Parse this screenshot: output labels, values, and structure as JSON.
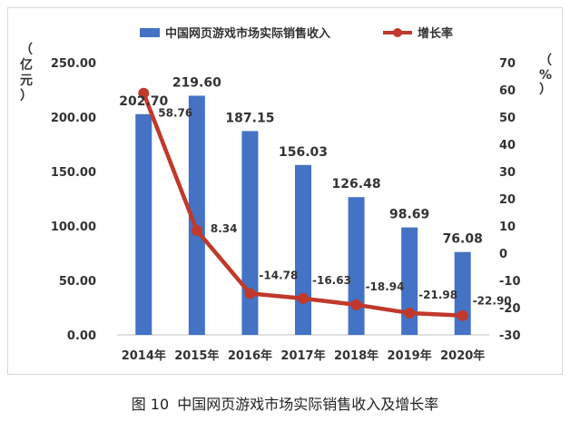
{
  "caption": {
    "figure_no": "图 10",
    "text": "中国网页游戏市场实际销售收入及增长率"
  },
  "colors": {
    "bar": "#4472C4",
    "line": "#C0392B",
    "text": "#333333",
    "frame": "#d9d9d9"
  },
  "chart_data": {
    "type": "bar",
    "categories": [
      "2014年",
      "2015年",
      "2016年",
      "2017年",
      "2018年",
      "2019年",
      "2020年"
    ],
    "series": [
      {
        "name": "中国网页游戏市场实际销售收入",
        "type": "bar",
        "axis": "left",
        "values": [
          202.7,
          219.6,
          187.15,
          156.03,
          126.48,
          98.69,
          76.08
        ],
        "labels": [
          "202.70",
          "219.60",
          "187.15",
          "156.03",
          "126.48",
          "98.69",
          "76.08"
        ]
      },
      {
        "name": "增长率",
        "type": "line",
        "axis": "right",
        "values": [
          58.76,
          8.34,
          -14.78,
          -16.63,
          -18.94,
          -21.98,
          -22.9
        ],
        "labels": [
          "58.76",
          "8.34",
          "-14.78",
          "-16.63",
          "-18.94",
          "-21.98",
          "-22.90"
        ]
      }
    ],
    "y_left": {
      "label": "（亿元）",
      "label_chars": [
        "（",
        "亿",
        "元",
        "）"
      ],
      "ylim": [
        0,
        250
      ],
      "ticks": [
        "0.00",
        "50.00",
        "100.00",
        "150.00",
        "200.00",
        "250.00"
      ]
    },
    "y_right": {
      "label": "（%）",
      "label_chars": [
        "（",
        "%",
        "）"
      ],
      "ylim": [
        -30,
        70
      ],
      "ticks": [
        "-30",
        "-20",
        "-10",
        "0",
        "10",
        "20",
        "30",
        "40",
        "50",
        "60",
        "70"
      ]
    },
    "grid": false,
    "legend_position": "top"
  }
}
